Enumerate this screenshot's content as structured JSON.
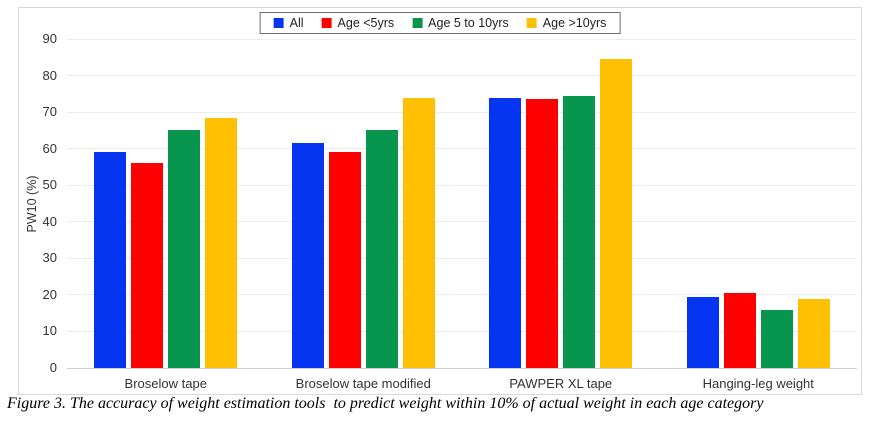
{
  "figure": {
    "caption": "Figure 3. The accuracy of weight estimation tools  to predict weight within 10% of actual weight in each age category"
  },
  "chart_data": {
    "type": "bar",
    "title": "",
    "xlabel": "",
    "ylabel": "PW10 (%)",
    "ylim": [
      0,
      90
    ],
    "ytick_step": 10,
    "yticks": [
      0,
      10,
      20,
      30,
      40,
      50,
      60,
      70,
      80,
      90
    ],
    "grid": true,
    "legend_position": "top-center",
    "categories": [
      "Broselow tape",
      "Broselow tape modified",
      "PAWPER XL tape",
      "Hanging-leg weight"
    ],
    "series": [
      {
        "name": "All",
        "color": "#0535F0",
        "values": [
          59,
          61.5,
          74,
          19.5
        ]
      },
      {
        "name": "Age <5yrs",
        "color": "#FE0000",
        "values": [
          56,
          59,
          73.5,
          20.5
        ]
      },
      {
        "name": "Age 5 to 10yrs",
        "color": "#08954E",
        "values": [
          65,
          65,
          74.5,
          16
        ]
      },
      {
        "name": "Age >10yrs",
        "color": "#FFC003",
        "values": [
          68.5,
          74,
          84.5,
          19
        ]
      }
    ]
  }
}
